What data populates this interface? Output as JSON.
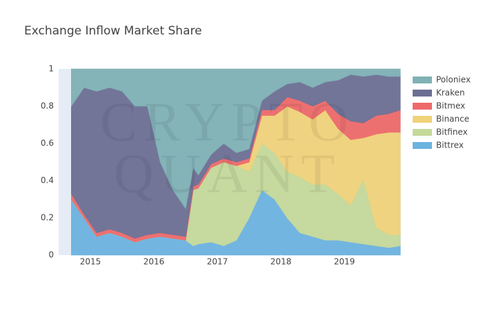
{
  "chart_data": {
    "type": "stacked_area",
    "title": "Exchange Inflow Market Share",
    "watermark": [
      "CRYPTO",
      "QUANT"
    ],
    "x": [
      2014.7,
      2014.9,
      2015.1,
      2015.3,
      2015.5,
      2015.7,
      2015.9,
      2016.1,
      2016.3,
      2016.5,
      2016.62,
      2016.7,
      2016.9,
      2017.1,
      2017.3,
      2017.5,
      2017.7,
      2017.9,
      2018.1,
      2018.3,
      2018.5,
      2018.7,
      2018.9,
      2019.1,
      2019.3,
      2019.5,
      2019.7,
      2019.88
    ],
    "series": [
      {
        "name": "Poloniex",
        "color": "#7fb1b5",
        "values": [
          0.2,
          0.1,
          0.12,
          0.1,
          0.12,
          0.2,
          0.2,
          0.5,
          0.65,
          0.75,
          0.53,
          0.57,
          0.46,
          0.4,
          0.45,
          0.43,
          0.17,
          0.12,
          0.08,
          0.07,
          0.1,
          0.07,
          0.06,
          0.03,
          0.04,
          0.03,
          0.04,
          0.04
        ]
      },
      {
        "name": "Kraken",
        "color": "#6c6f93",
        "values": [
          0.47,
          0.68,
          0.76,
          0.76,
          0.76,
          0.71,
          0.69,
          0.38,
          0.24,
          0.15,
          0.1,
          0.05,
          0.05,
          0.08,
          0.05,
          0.05,
          0.05,
          0.1,
          0.07,
          0.1,
          0.1,
          0.1,
          0.18,
          0.25,
          0.25,
          0.22,
          0.2,
          0.18
        ]
      },
      {
        "name": "Bitmex",
        "color": "#ee6a6a",
        "values": [
          0.03,
          0.02,
          0.02,
          0.02,
          0.02,
          0.02,
          0.02,
          0.02,
          0.02,
          0.02,
          0.02,
          0.02,
          0.02,
          0.02,
          0.02,
          0.02,
          0.03,
          0.03,
          0.05,
          0.06,
          0.07,
          0.05,
          0.08,
          0.1,
          0.08,
          0.1,
          0.1,
          0.12
        ]
      },
      {
        "name": "Binance",
        "color": "#f0d27a",
        "values": [
          0,
          0,
          0,
          0,
          0,
          0,
          0,
          0,
          0,
          0,
          0,
          0,
          0,
          0,
          0,
          0.05,
          0.15,
          0.2,
          0.35,
          0.35,
          0.35,
          0.4,
          0.35,
          0.35,
          0.22,
          0.5,
          0.55,
          0.55
        ]
      },
      {
        "name": "Bitfinex",
        "color": "#c5d99a",
        "values": [
          0,
          0,
          0,
          0,
          0,
          0,
          0,
          0,
          0,
          0,
          0.3,
          0.3,
          0.4,
          0.45,
          0.4,
          0.25,
          0.25,
          0.25,
          0.25,
          0.3,
          0.28,
          0.3,
          0.25,
          0.2,
          0.35,
          0.1,
          0.07,
          0.06
        ]
      },
      {
        "name": "Bittrex",
        "color": "#6cb3e0",
        "values": [
          0.3,
          0.2,
          0.1,
          0.12,
          0.1,
          0.07,
          0.09,
          0.1,
          0.09,
          0.08,
          0.05,
          0.06,
          0.07,
          0.05,
          0.08,
          0.2,
          0.35,
          0.3,
          0.2,
          0.12,
          0.1,
          0.08,
          0.08,
          0.07,
          0.06,
          0.05,
          0.04,
          0.05
        ]
      }
    ],
    "xlim": [
      2014.5,
      2019.89
    ],
    "xticks": [
      2015,
      2016,
      2017,
      2018,
      2019
    ],
    "ylim": [
      0,
      1
    ],
    "yticks": [
      0,
      0.2,
      0.4,
      0.6,
      0.8,
      1
    ],
    "legend": "right"
  }
}
